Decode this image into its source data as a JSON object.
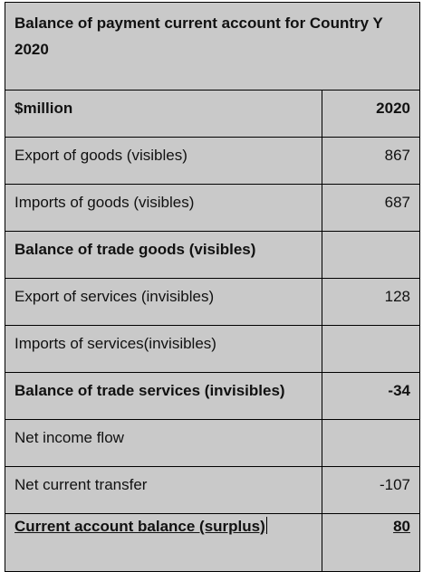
{
  "table": {
    "title": "Balance of payment current account for Country Y 2020",
    "header": {
      "label": "$million",
      "value": "2020"
    },
    "rows": [
      {
        "label": "Export of goods (visibles)",
        "value": "867"
      },
      {
        "label": "Imports of goods (visibles)",
        "value": "687"
      },
      {
        "label": "Balance of trade goods (visibles)",
        "value": ""
      },
      {
        "label": "Export of services (invisibles)",
        "value": "128"
      },
      {
        "label": "Imports of services(invisibles)",
        "value": ""
      },
      {
        "label": "Balance of trade services (invisibles)",
        "value": "-34"
      },
      {
        "label": "Net income flow",
        "value": ""
      },
      {
        "label": "Net current transfer",
        "value": "-107"
      },
      {
        "label": "Current account balance (surplus)",
        "value": "80"
      }
    ]
  }
}
